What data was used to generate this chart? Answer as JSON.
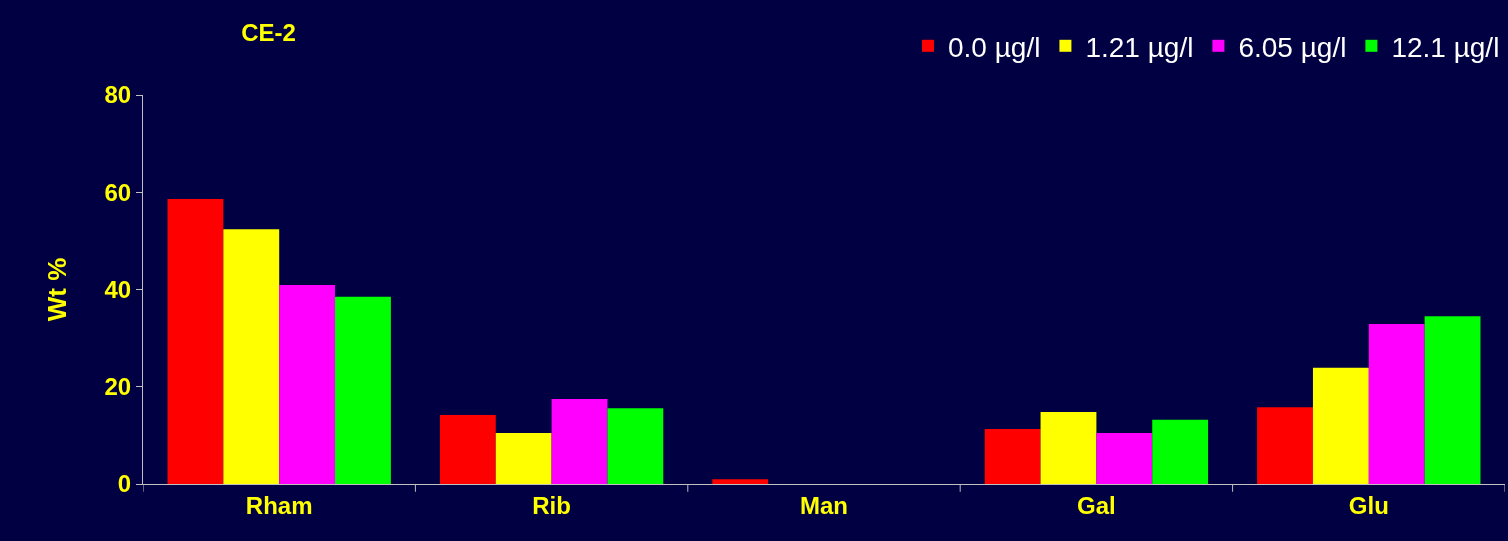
{
  "chart_data": {
    "type": "bar",
    "title": "CE-2",
    "ylabel": "Wt %",
    "categories": [
      "Rham",
      "Rib",
      "Man",
      "Gal",
      "Glu"
    ],
    "series": [
      {
        "name": "0.0 µg/l",
        "color": "#ff0000",
        "values": [
          58.6,
          14.2,
          1.0,
          11.3,
          15.8
        ]
      },
      {
        "name": "1.21 µg/l",
        "color": "#ffff00",
        "values": [
          52.4,
          10.5,
          0,
          14.8,
          23.9
        ]
      },
      {
        "name": "6.05 µg/l",
        "color": "#ff00ff",
        "values": [
          40.9,
          17.5,
          0,
          10.5,
          32.9
        ]
      },
      {
        "name": "12.1 µg/l",
        "color": "#00ff00",
        "values": [
          38.5,
          15.6,
          0,
          13.2,
          34.5
        ]
      }
    ],
    "ylim": [
      0,
      80
    ],
    "yticks": [
      0,
      20,
      40,
      60,
      80
    ],
    "grid": false,
    "legend": "top right"
  }
}
